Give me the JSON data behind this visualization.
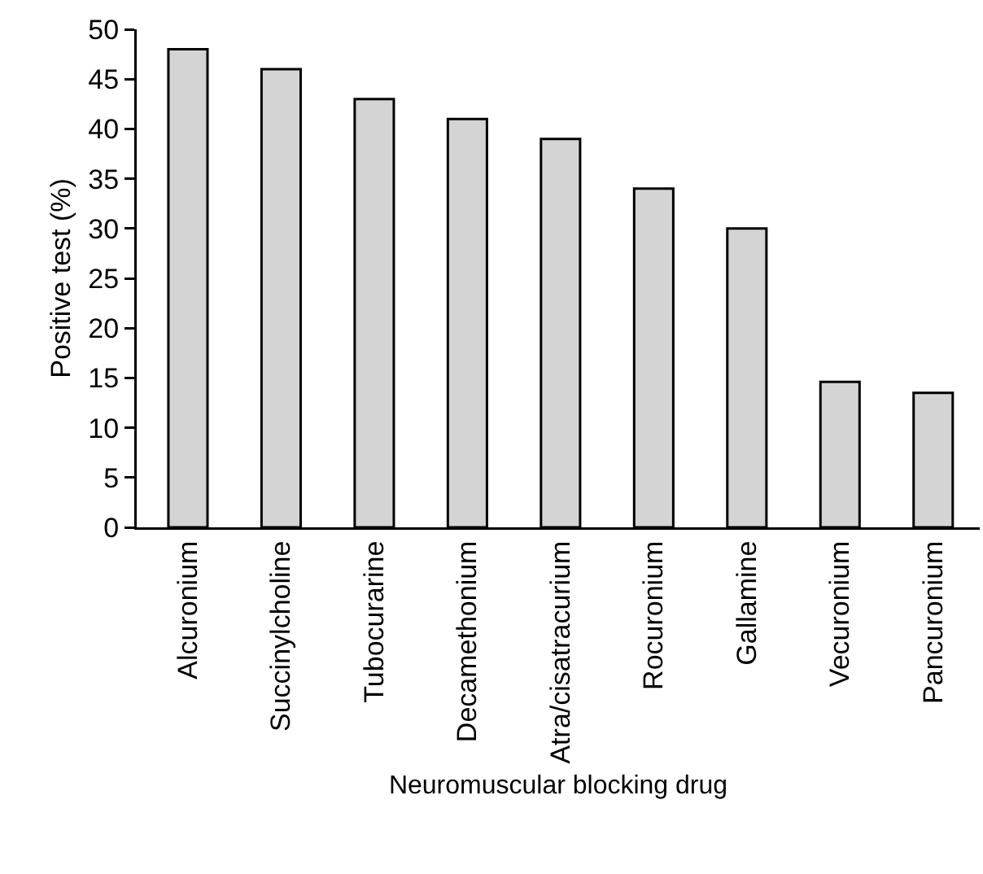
{
  "chart_data": {
    "type": "bar",
    "xlabel": "Neuromuscular blocking drug",
    "ylabel": "Positive test (%)",
    "categories": [
      "Alcuronium",
      "Succinylcholine",
      "Tubocurarine",
      "Decamethonium",
      "Atra/cisatracurium",
      "Rocuronium",
      "Gallamine",
      "Vecuronium",
      "Pancuronium"
    ],
    "values": [
      48,
      46,
      43,
      41,
      39,
      34,
      30,
      14.6,
      13.5
    ],
    "color": "#d4d4d4",
    "ylim": [
      0,
      50
    ],
    "yticks": [
      0,
      5,
      10,
      15,
      20,
      25,
      30,
      35,
      40,
      45,
      50
    ],
    "grid": false
  }
}
